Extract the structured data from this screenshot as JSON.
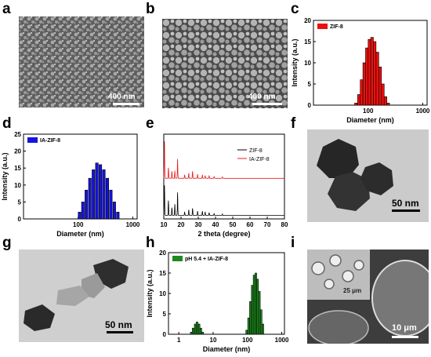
{
  "panels": {
    "a": {
      "letter": "a",
      "scale": "400 nm"
    },
    "b": {
      "letter": "b",
      "scale": "400 nm"
    },
    "c": {
      "letter": "c"
    },
    "d": {
      "letter": "d"
    },
    "e": {
      "letter": "e"
    },
    "f": {
      "letter": "f",
      "scale": "50 nm"
    },
    "g": {
      "letter": "g",
      "scale": "50 nm"
    },
    "h": {
      "letter": "h"
    },
    "i": {
      "letter": "i",
      "scale": "10 μm",
      "inset_scale": "25 μm"
    }
  },
  "colors": {
    "zif8_dls": "#e8110e",
    "iazif8_dls": "#1414e0",
    "ph_dls": "#1f8a1f",
    "xrd_black": "#000000",
    "xrd_red": "#e82020"
  },
  "chart_data": [
    {
      "id": "c",
      "type": "bar",
      "legend": "ZIF-8",
      "legend_position": "top-left",
      "xlabel": "Diameter (nm)",
      "ylabel": "Intensity (a.u.)",
      "xscale": "log",
      "xticks": [
        "100",
        "1000"
      ],
      "ylim": [
        0,
        20
      ],
      "yticks": [
        0,
        5,
        10,
        15,
        20
      ],
      "bins": [
        {
          "x": 60,
          "y": 0.5
        },
        {
          "x": 68,
          "y": 2.5
        },
        {
          "x": 76,
          "y": 6
        },
        {
          "x": 85,
          "y": 10
        },
        {
          "x": 95,
          "y": 13.5
        },
        {
          "x": 106,
          "y": 15.5
        },
        {
          "x": 118,
          "y": 16
        },
        {
          "x": 132,
          "y": 15
        },
        {
          "x": 148,
          "y": 12.5
        },
        {
          "x": 166,
          "y": 9
        },
        {
          "x": 186,
          "y": 5
        },
        {
          "x": 208,
          "y": 2
        },
        {
          "x": 233,
          "y": 0.5
        }
      ]
    },
    {
      "id": "d",
      "type": "bar",
      "legend": "IA-ZIF-8",
      "legend_position": "top-left",
      "xlabel": "Diameter (nm)",
      "ylabel": "Intensity (a.u.)",
      "xscale": "log",
      "xticks": [
        "100",
        "1000"
      ],
      "ylim": [
        0,
        25
      ],
      "yticks": [
        0,
        5,
        10,
        15,
        20,
        25
      ],
      "bins": [
        {
          "x": 106,
          "y": 2
        },
        {
          "x": 122,
          "y": 5
        },
        {
          "x": 141,
          "y": 8.5
        },
        {
          "x": 164,
          "y": 12
        },
        {
          "x": 190,
          "y": 14.5
        },
        {
          "x": 220,
          "y": 16.5
        },
        {
          "x": 255,
          "y": 16
        },
        {
          "x": 295,
          "y": 14.5
        },
        {
          "x": 342,
          "y": 12
        },
        {
          "x": 396,
          "y": 8.5
        },
        {
          "x": 459,
          "y": 5
        },
        {
          "x": 532,
          "y": 2
        }
      ]
    },
    {
      "id": "e",
      "type": "line",
      "legend_position": "top-right",
      "xlabel": "2 theta (degree)",
      "ylabel": "",
      "xlim": [
        10,
        80
      ],
      "xticks": [
        10,
        20,
        30,
        40,
        50,
        60,
        70,
        80
      ],
      "series": [
        {
          "name": "ZIF-8",
          "color": "#000000",
          "offset": 0.1,
          "peaks": [
            [
              10.4,
              0.85
            ],
            [
              12.7,
              0.42
            ],
            [
              14.7,
              0.22
            ],
            [
              16.4,
              0.32
            ],
            [
              18.0,
              0.65
            ],
            [
              22.1,
              0.1
            ],
            [
              24.5,
              0.16
            ],
            [
              26.7,
              0.2
            ],
            [
              29.6,
              0.12
            ],
            [
              32.4,
              0.12
            ],
            [
              34.0,
              0.1
            ],
            [
              36.3,
              0.08
            ],
            [
              39.2,
              0.05
            ],
            [
              44.0,
              0.04
            ]
          ]
        },
        {
          "name": "IA-ZIF-8",
          "color": "#e82020",
          "offset": 1.15,
          "peaks": [
            [
              7.3,
              0.2
            ],
            [
              10.4,
              1.05
            ],
            [
              12.7,
              0.3
            ],
            [
              14.7,
              0.2
            ],
            [
              16.4,
              0.22
            ],
            [
              18.0,
              0.55
            ],
            [
              22.1,
              0.1
            ],
            [
              24.5,
              0.15
            ],
            [
              26.7,
              0.2
            ],
            [
              29.6,
              0.12
            ],
            [
              32.4,
              0.1
            ],
            [
              34.0,
              0.08
            ],
            [
              36.3,
              0.07
            ],
            [
              39.2,
              0.05
            ],
            [
              44.0,
              0.04
            ]
          ]
        }
      ]
    },
    {
      "id": "h",
      "type": "bar",
      "legend": "pH 5.4 + IA-ZIF-8",
      "legend_position": "top-left",
      "xlabel": "Diameter (nm)",
      "ylabel": "Intensity (a.u.)",
      "xscale": "log",
      "xticks": [
        "1",
        "10",
        "100",
        "1000"
      ],
      "ylim": [
        0,
        20
      ],
      "yticks": [
        0,
        5,
        10,
        15,
        20
      ],
      "bins": [
        {
          "x": 2.3,
          "y": 0.5
        },
        {
          "x": 2.6,
          "y": 1.5
        },
        {
          "x": 3.0,
          "y": 2.5
        },
        {
          "x": 3.4,
          "y": 3
        },
        {
          "x": 3.9,
          "y": 2.5
        },
        {
          "x": 4.4,
          "y": 1.5
        },
        {
          "x": 5.0,
          "y": 0.5
        },
        {
          "x": 95,
          "y": 1
        },
        {
          "x": 108,
          "y": 4
        },
        {
          "x": 122,
          "y": 8
        },
        {
          "x": 138,
          "y": 12
        },
        {
          "x": 156,
          "y": 14.5
        },
        {
          "x": 176,
          "y": 15
        },
        {
          "x": 198,
          "y": 13.5
        },
        {
          "x": 223,
          "y": 10.5
        },
        {
          "x": 251,
          "y": 6
        },
        {
          "x": 282,
          "y": 2.5
        }
      ]
    }
  ]
}
